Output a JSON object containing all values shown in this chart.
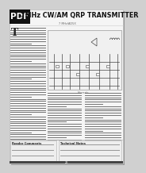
{
  "bg_color": "#d0d0d0",
  "page_bg": "#f5f5f5",
  "pdf_badge_bg": "#111111",
  "pdf_text": "#ffffff",
  "title": "7MHz CW/AM QRP TRANSMITTER",
  "subtitle": "7 MHz/AD5X",
  "title_color": "#111111",
  "body_line_color": "#777777",
  "circuit_bg": "#e8e8e8",
  "circuit_line": "#444444",
  "shadow_color": "#999999",
  "page_edge": "#bbbbbb",
  "heading_color": "#222222",
  "box_bg": "#eeeeee",
  "box_edge": "#aaaaaa",
  "footer_bg": "#444444"
}
